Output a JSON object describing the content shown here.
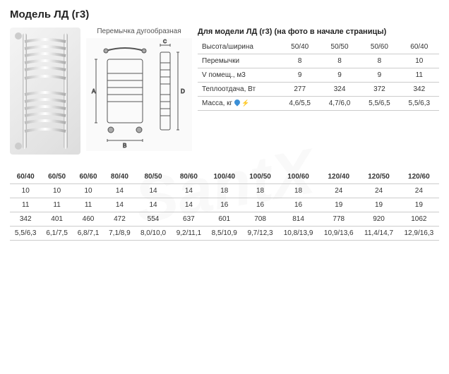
{
  "title": "Модель ЛД (г3)",
  "diagram_label": "Перемычка дугообразная",
  "spec_title": "Для модели ЛД (г3) (на фото в начале страницы)",
  "spec_table": {
    "rows": [
      {
        "label": "Высота/ширина",
        "vals": [
          "50/40",
          "50/50",
          "50/60",
          "60/40"
        ]
      },
      {
        "label": "Перемычки",
        "vals": [
          "8",
          "8",
          "8",
          "10"
        ]
      },
      {
        "label": "V помещ., м3",
        "vals": [
          "9",
          "9",
          "9",
          "11"
        ]
      },
      {
        "label": "Теплоотдача, Вт",
        "vals": [
          "277",
          "324",
          "372",
          "342"
        ]
      },
      {
        "label": "Масса, кг",
        "vals": [
          "4,6/5,5",
          "4,7/6,0",
          "5,5/6,5",
          "5,5/6,3"
        ],
        "icons": true
      }
    ]
  },
  "wide_table": {
    "headers": [
      "60/40",
      "60/50",
      "60/60",
      "80/40",
      "80/50",
      "80/60",
      "100/40",
      "100/50",
      "100/60",
      "120/40",
      "120/50",
      "120/60"
    ],
    "rows": [
      [
        "10",
        "10",
        "10",
        "14",
        "14",
        "14",
        "18",
        "18",
        "18",
        "24",
        "24",
        "24"
      ],
      [
        "11",
        "11",
        "11",
        "14",
        "14",
        "14",
        "16",
        "16",
        "16",
        "19",
        "19",
        "19"
      ],
      [
        "342",
        "401",
        "460",
        "472",
        "554",
        "637",
        "601",
        "708",
        "814",
        "778",
        "920",
        "1062"
      ],
      [
        "5,5/6,3",
        "6,1/7,5",
        "6,8/7,1",
        "7,1/8,9",
        "8,0/10,0",
        "9,2/11,1",
        "8,5/10,9",
        "9,7/12,3",
        "10,8/13,9",
        "10,9/13,6",
        "11,4/14,7",
        "12,9/16,3"
      ]
    ]
  },
  "colors": {
    "text": "#333333",
    "border": "#cccccc",
    "bg": "#ffffff",
    "water_icon": "#3b8fd6",
    "electric_icon": "#e07b2e"
  }
}
